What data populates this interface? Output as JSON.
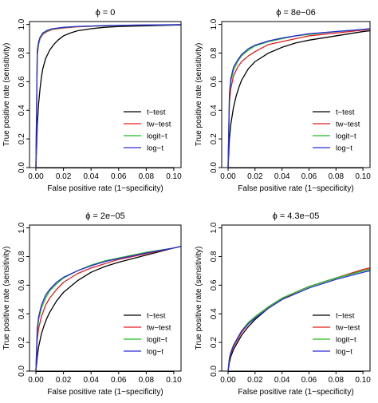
{
  "chart_data": [
    {
      "type": "line",
      "title": "ϕ = 0",
      "xlabel": "False positive rate (1−specificity)",
      "ylabel": "True positive rate (sensitivity)",
      "xlim": [
        0,
        0.105
      ],
      "ylim": [
        0,
        1.02
      ],
      "xticks": [
        "0.00",
        "0.02",
        "0.04",
        "0.06",
        "0.08",
        "0.10"
      ],
      "yticks": [
        "0.0",
        "0.2",
        "0.4",
        "0.6",
        "0.8",
        "1.0"
      ],
      "legend_position": "bottom-right",
      "series": [
        {
          "name": "t−test",
          "color": "#000000",
          "x": [
            0,
            0.001,
            0.002,
            0.003,
            0.004,
            0.005,
            0.007,
            0.01,
            0.013,
            0.016,
            0.02,
            0.025,
            0.03,
            0.04,
            0.05,
            0.06,
            0.08,
            0.1,
            0.105
          ],
          "y": [
            0,
            0.3,
            0.45,
            0.55,
            0.63,
            0.69,
            0.76,
            0.82,
            0.86,
            0.89,
            0.92,
            0.94,
            0.955,
            0.97,
            0.98,
            0.985,
            0.99,
            0.995,
            0.996
          ]
        },
        {
          "name": "tw−test",
          "color": "#e31a1c",
          "x": [
            0,
            0.001,
            0.002,
            0.003,
            0.005,
            0.008,
            0.012,
            0.02,
            0.03,
            0.05,
            0.07,
            0.1,
            0.105
          ],
          "y": [
            0,
            0.78,
            0.86,
            0.9,
            0.93,
            0.95,
            0.965,
            0.975,
            0.983,
            0.99,
            0.994,
            0.997,
            0.998
          ]
        },
        {
          "name": "logit−t",
          "color": "#1fbf1f",
          "x": [
            0,
            0.001,
            0.002,
            0.003,
            0.005,
            0.008,
            0.012,
            0.02,
            0.03,
            0.05,
            0.07,
            0.1,
            0.105
          ],
          "y": [
            0,
            0.8,
            0.87,
            0.905,
            0.935,
            0.955,
            0.968,
            0.978,
            0.985,
            0.991,
            0.995,
            0.997,
            0.998
          ]
        },
        {
          "name": "log−t",
          "color": "#2b2bd9",
          "x": [
            0,
            0.001,
            0.002,
            0.003,
            0.005,
            0.008,
            0.012,
            0.02,
            0.03,
            0.05,
            0.07,
            0.1,
            0.105
          ],
          "y": [
            0,
            0.82,
            0.88,
            0.91,
            0.94,
            0.958,
            0.97,
            0.98,
            0.986,
            0.992,
            0.995,
            0.998,
            0.998
          ]
        }
      ]
    },
    {
      "type": "line",
      "title": "ϕ = 8e−06",
      "xlabel": "False positive rate (1−specificity)",
      "ylabel": "True positive rate (sensitivity)",
      "xlim": [
        0,
        0.105
      ],
      "ylim": [
        0,
        1.02
      ],
      "xticks": [
        "0.00",
        "0.02",
        "0.04",
        "0.06",
        "0.08",
        "0.10"
      ],
      "yticks": [
        "0.0",
        "0.2",
        "0.4",
        "0.6",
        "0.8",
        "1.0"
      ],
      "legend_position": "bottom-right",
      "series": [
        {
          "name": "t−test",
          "color": "#000000",
          "x": [
            0,
            0.001,
            0.002,
            0.004,
            0.006,
            0.008,
            0.01,
            0.015,
            0.02,
            0.03,
            0.04,
            0.05,
            0.06,
            0.08,
            0.1,
            0.105
          ],
          "y": [
            0,
            0.2,
            0.3,
            0.42,
            0.5,
            0.56,
            0.61,
            0.69,
            0.74,
            0.8,
            0.84,
            0.87,
            0.89,
            0.92,
            0.95,
            0.955
          ]
        },
        {
          "name": "tw−test",
          "color": "#e31a1c",
          "x": [
            0,
            0.001,
            0.002,
            0.004,
            0.007,
            0.01,
            0.015,
            0.02,
            0.03,
            0.04,
            0.05,
            0.06,
            0.08,
            0.1,
            0.105
          ],
          "y": [
            0,
            0.45,
            0.55,
            0.64,
            0.7,
            0.74,
            0.78,
            0.81,
            0.86,
            0.88,
            0.9,
            0.92,
            0.94,
            0.96,
            0.965
          ]
        },
        {
          "name": "logit−t",
          "color": "#1fbf1f",
          "x": [
            0,
            0.001,
            0.002,
            0.004,
            0.007,
            0.01,
            0.015,
            0.02,
            0.03,
            0.04,
            0.05,
            0.06,
            0.08,
            0.1,
            0.105
          ],
          "y": [
            0,
            0.5,
            0.6,
            0.68,
            0.74,
            0.78,
            0.82,
            0.85,
            0.88,
            0.9,
            0.92,
            0.93,
            0.95,
            0.965,
            0.97
          ]
        },
        {
          "name": "log−t",
          "color": "#2b2bd9",
          "x": [
            0,
            0.001,
            0.002,
            0.004,
            0.007,
            0.01,
            0.015,
            0.02,
            0.03,
            0.04,
            0.05,
            0.06,
            0.08,
            0.1,
            0.105
          ],
          "y": [
            0,
            0.52,
            0.62,
            0.7,
            0.75,
            0.79,
            0.83,
            0.855,
            0.885,
            0.905,
            0.92,
            0.935,
            0.95,
            0.965,
            0.97
          ]
        }
      ]
    },
    {
      "type": "line",
      "title": "ϕ = 2e−05",
      "xlabel": "False positive rate (1−specificity)",
      "ylabel": "True positive rate (sensitivity)",
      "xlim": [
        0,
        0.105
      ],
      "ylim": [
        0,
        1.02
      ],
      "xticks": [
        "0.00",
        "0.02",
        "0.04",
        "0.06",
        "0.08",
        "0.10"
      ],
      "yticks": [
        "0.0",
        "0.2",
        "0.4",
        "0.6",
        "0.8",
        "1.0"
      ],
      "legend_position": "bottom-right",
      "series": [
        {
          "name": "t−test",
          "color": "#000000",
          "x": [
            0,
            0.001,
            0.002,
            0.004,
            0.006,
            0.008,
            0.01,
            0.015,
            0.02,
            0.03,
            0.04,
            0.05,
            0.06,
            0.08,
            0.1,
            0.105
          ],
          "y": [
            0,
            0.1,
            0.17,
            0.26,
            0.32,
            0.37,
            0.41,
            0.49,
            0.55,
            0.63,
            0.69,
            0.73,
            0.76,
            0.81,
            0.86,
            0.87
          ]
        },
        {
          "name": "tw−test",
          "color": "#e31a1c",
          "x": [
            0,
            0.001,
            0.002,
            0.004,
            0.007,
            0.01,
            0.015,
            0.02,
            0.03,
            0.04,
            0.05,
            0.06,
            0.08,
            0.1,
            0.105
          ],
          "y": [
            0,
            0.22,
            0.3,
            0.38,
            0.46,
            0.51,
            0.57,
            0.62,
            0.68,
            0.72,
            0.75,
            0.78,
            0.82,
            0.86,
            0.87
          ]
        },
        {
          "name": "logit−t",
          "color": "#1fbf1f",
          "x": [
            0,
            0.001,
            0.002,
            0.004,
            0.007,
            0.01,
            0.015,
            0.02,
            0.03,
            0.04,
            0.05,
            0.06,
            0.08,
            0.1,
            0.105
          ],
          "y": [
            0,
            0.28,
            0.36,
            0.44,
            0.51,
            0.56,
            0.61,
            0.65,
            0.7,
            0.74,
            0.77,
            0.79,
            0.83,
            0.86,
            0.87
          ]
        },
        {
          "name": "log−t",
          "color": "#2b2bd9",
          "x": [
            0,
            0.001,
            0.002,
            0.004,
            0.007,
            0.01,
            0.015,
            0.02,
            0.03,
            0.04,
            0.05,
            0.06,
            0.08,
            0.1,
            0.105
          ],
          "y": [
            0,
            0.3,
            0.38,
            0.46,
            0.53,
            0.57,
            0.62,
            0.655,
            0.7,
            0.735,
            0.765,
            0.785,
            0.825,
            0.86,
            0.87
          ]
        }
      ]
    },
    {
      "type": "line",
      "title": "ϕ = 4.3e−05",
      "xlabel": "False positive rate (1−specificity)",
      "ylabel": "True positive rate (sensitivity)",
      "xlim": [
        0,
        0.105
      ],
      "ylim": [
        0,
        1.02
      ],
      "xticks": [
        "0.00",
        "0.02",
        "0.04",
        "0.06",
        "0.08",
        "0.10"
      ],
      "yticks": [
        "0.0",
        "0.2",
        "0.4",
        "0.6",
        "0.8",
        "1.0"
      ],
      "legend_position": "bottom-right",
      "series": [
        {
          "name": "t−test",
          "color": "#000000",
          "x": [
            0,
            0.001,
            0.002,
            0.004,
            0.007,
            0.01,
            0.015,
            0.02,
            0.03,
            0.04,
            0.05,
            0.06,
            0.08,
            0.1,
            0.105
          ],
          "y": [
            0,
            0.06,
            0.1,
            0.15,
            0.2,
            0.25,
            0.31,
            0.36,
            0.44,
            0.5,
            0.55,
            0.59,
            0.65,
            0.7,
            0.71
          ]
        },
        {
          "name": "tw−test",
          "color": "#e31a1c",
          "x": [
            0,
            0.001,
            0.002,
            0.004,
            0.007,
            0.01,
            0.015,
            0.02,
            0.03,
            0.04,
            0.05,
            0.06,
            0.08,
            0.1,
            0.105
          ],
          "y": [
            0,
            0.08,
            0.12,
            0.17,
            0.22,
            0.27,
            0.33,
            0.37,
            0.44,
            0.5,
            0.55,
            0.59,
            0.65,
            0.71,
            0.72
          ]
        },
        {
          "name": "logit−t",
          "color": "#1fbf1f",
          "x": [
            0,
            0.001,
            0.002,
            0.004,
            0.007,
            0.01,
            0.015,
            0.02,
            0.03,
            0.04,
            0.05,
            0.06,
            0.08,
            0.1,
            0.105
          ],
          "y": [
            0,
            0.09,
            0.13,
            0.18,
            0.23,
            0.28,
            0.34,
            0.38,
            0.45,
            0.51,
            0.55,
            0.59,
            0.65,
            0.7,
            0.71
          ]
        },
        {
          "name": "log−t",
          "color": "#2b2bd9",
          "x": [
            0,
            0.001,
            0.002,
            0.004,
            0.007,
            0.01,
            0.015,
            0.02,
            0.03,
            0.04,
            0.05,
            0.06,
            0.08,
            0.1,
            0.105
          ],
          "y": [
            0,
            0.09,
            0.13,
            0.18,
            0.23,
            0.28,
            0.33,
            0.37,
            0.44,
            0.5,
            0.54,
            0.58,
            0.64,
            0.69,
            0.7
          ]
        }
      ]
    }
  ]
}
